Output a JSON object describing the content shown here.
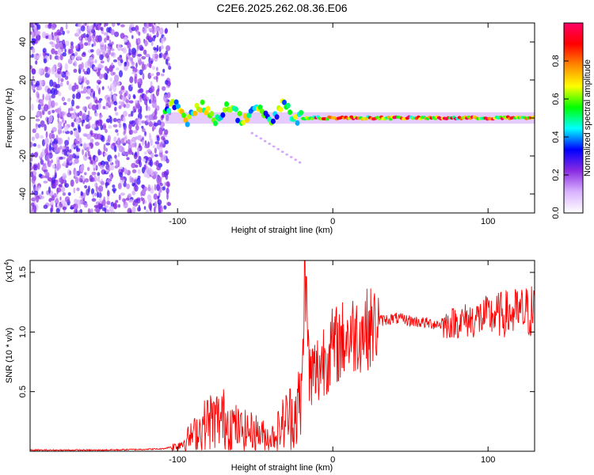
{
  "title": "C2E6.2025.262.08.36.E06",
  "chart_data": [
    {
      "type": "heatmap",
      "xlabel": "Height of straight line (km)",
      "ylabel": "Frequency (Hz)",
      "xlim": [
        -195,
        130
      ],
      "ylim": [
        -50,
        50
      ],
      "x_ticks": [
        -100,
        0,
        100
      ],
      "y_ticks": [
        -40,
        -20,
        0,
        20,
        40
      ],
      "colorbar": {
        "label": "Normalized spectral amplitude",
        "range": [
          0,
          1
        ],
        "ticks": [
          0.0,
          0.2,
          0.4,
          0.6,
          0.8
        ],
        "colors": [
          "#ffffff",
          "#d9b3ff",
          "#8a2be2",
          "#0000ff",
          "#00ffff",
          "#00ff00",
          "#ffff00",
          "#ff8800",
          "#ff0000",
          "#ff0066"
        ]
      },
      "features": {
        "noise_region_x": [
          -195,
          -105
        ],
        "signal_band_hz": 0,
        "signal_onset_x": -108,
        "strong_segment_x": [
          -20,
          130
        ]
      }
    },
    {
      "type": "line",
      "xlabel": "Height of straight line (km)",
      "ylabel": "SNR (10 * v/v)",
      "y_multiplier": "(x10^4)",
      "y_multiplier_base": "(x10",
      "y_multiplier_exp": "4",
      "xlim": [
        -195,
        130
      ],
      "ylim": [
        0,
        1.6
      ],
      "x_ticks": [
        -100,
        0,
        100
      ],
      "y_ticks": [
        0.5,
        1.0,
        1.5
      ],
      "series": [
        {
          "color": "#ff0000",
          "x": [
            -195,
            -150,
            -110,
            -100,
            -90,
            -80,
            -70,
            -60,
            -50,
            -40,
            -35,
            -30,
            -25,
            -20,
            -18,
            -15,
            -10,
            -5,
            0,
            10,
            20,
            30,
            40,
            50,
            60,
            70,
            80,
            90,
            100,
            110,
            120,
            130
          ],
          "y": [
            0.01,
            0.01,
            0.02,
            0.05,
            0.15,
            0.28,
            0.3,
            0.2,
            0.18,
            0.12,
            0.2,
            0.3,
            0.35,
            0.45,
            1.6,
            0.65,
            0.7,
            0.85,
            0.9,
            1.0,
            1.05,
            1.1,
            1.12,
            1.1,
            1.08,
            1.07,
            1.1,
            1.12,
            1.15,
            1.17,
            1.18,
            1.2
          ]
        }
      ]
    }
  ]
}
